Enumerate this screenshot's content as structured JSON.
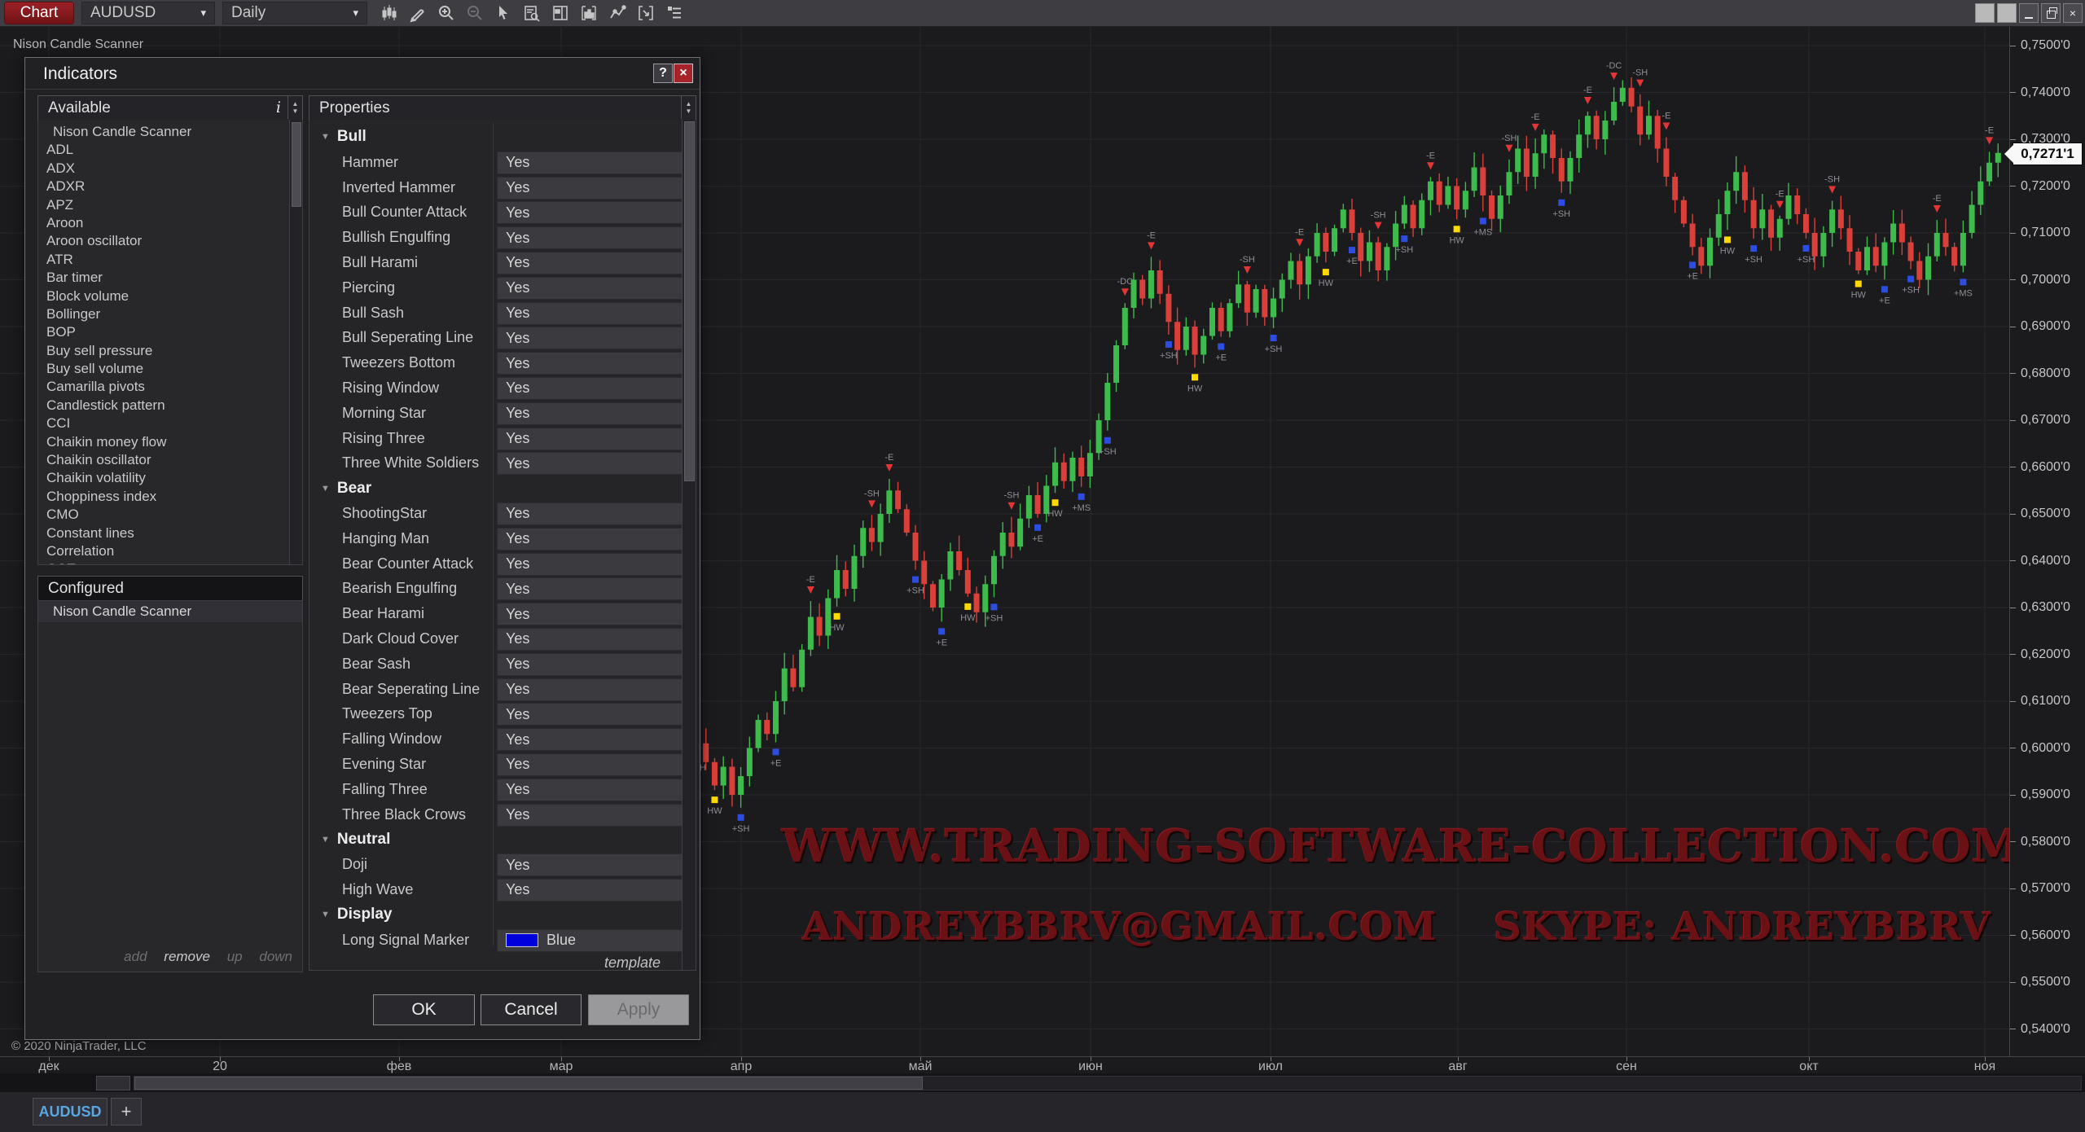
{
  "colors": {
    "candle_up": "#3dbb4d",
    "candle_down": "#da3f39",
    "grid": "#28282c",
    "marker_red": "#e23535",
    "marker_blue": "#2d4ce0",
    "marker_yellow": "#ffd900",
    "tab_blue": "#59a7e2",
    "accent_red": "#9b2026",
    "watermark": "#691115",
    "swatch_blue": "#0000dd"
  },
  "toolbar": {
    "menu_button": "Chart",
    "instrument": "AUDUSD",
    "period": "Daily",
    "chevron": "▾",
    "icons": [
      {
        "name": "chart-style"
      },
      {
        "name": "drawing-tools"
      },
      {
        "name": "zoom-in"
      },
      {
        "name": "zoom-out"
      },
      {
        "name": "cursor"
      },
      {
        "name": "data-box"
      },
      {
        "name": "chart-trader"
      },
      {
        "name": "indicators-panel"
      },
      {
        "name": "drawing-line"
      },
      {
        "name": "region-select"
      },
      {
        "name": "properties-list"
      }
    ]
  },
  "window_controls": {
    "close": "×"
  },
  "chart": {
    "label": "Nison Candle Scanner",
    "copyright": "© 2020 NinjaTrader, LLC",
    "watermark_line1": "WWW.TRADING-SOFTWARE-COLLECTION.COM",
    "watermark_line2": "ANDREYBBRV@GMAIL.COM    SKYPE: ANDREYBBRV",
    "price_tag": "0,7271'1",
    "y_axis": {
      "labels": [
        "0,7500'0",
        "0,7400'0",
        "0,7300'0",
        "0,7200'0",
        "0,7100'0",
        "0,7000'0",
        "0,6900'0",
        "0,6800'0",
        "0,6700'0",
        "0,6600'0",
        "0,6500'0",
        "0,6400'0",
        "0,6300'0",
        "0,6200'0",
        "0,6100'0",
        "0,6000'0",
        "0,5900'0",
        "0,5800'0",
        "0,5700'0",
        "0,5600'0",
        "0,5500'0",
        "0,5400'0"
      ],
      "top_price": 0.75,
      "step": 0.01
    },
    "x_axis": {
      "labels": [
        [
          "дек",
          60
        ],
        [
          "20",
          270
        ],
        [
          "фев",
          490
        ],
        [
          "мар",
          689
        ],
        [
          "апр",
          910
        ],
        [
          "май",
          1130
        ],
        [
          "июн",
          1339
        ],
        [
          "июл",
          1560
        ],
        [
          "авг",
          1790
        ],
        [
          "сен",
          1997
        ],
        [
          "окт",
          2221
        ],
        [
          "ноя",
          2437
        ]
      ]
    },
    "chart_data": {
      "type": "candlestick",
      "instrument": "AUDUSD",
      "period": "Daily",
      "ylim": [
        0.54,
        0.75
      ],
      "grid_step": 0.01,
      "last_price": 0.7271,
      "open_first": 0.604,
      "closes": [
        0.601,
        0.597,
        0.592,
        0.596,
        0.59,
        0.594,
        0.6,
        0.606,
        0.603,
        0.61,
        0.617,
        0.613,
        0.621,
        0.628,
        0.624,
        0.632,
        0.638,
        0.634,
        0.641,
        0.647,
        0.644,
        0.65,
        0.655,
        0.651,
        0.646,
        0.64,
        0.635,
        0.63,
        0.636,
        0.642,
        0.638,
        0.633,
        0.629,
        0.635,
        0.641,
        0.646,
        0.643,
        0.649,
        0.654,
        0.65,
        0.656,
        0.661,
        0.657,
        0.662,
        0.658,
        0.663,
        0.67,
        0.678,
        0.686,
        0.694,
        0.7,
        0.696,
        0.702,
        0.697,
        0.691,
        0.685,
        0.69,
        0.684,
        0.688,
        0.694,
        0.689,
        0.695,
        0.699,
        0.693,
        0.698,
        0.692,
        0.696,
        0.7,
        0.704,
        0.699,
        0.705,
        0.71,
        0.706,
        0.711,
        0.715,
        0.71,
        0.704,
        0.708,
        0.702,
        0.707,
        0.712,
        0.716,
        0.711,
        0.717,
        0.721,
        0.716,
        0.72,
        0.715,
        0.719,
        0.724,
        0.718,
        0.713,
        0.718,
        0.723,
        0.728,
        0.722,
        0.727,
        0.731,
        0.726,
        0.721,
        0.726,
        0.731,
        0.735,
        0.73,
        0.734,
        0.738,
        0.741,
        0.737,
        0.731,
        0.735,
        0.728,
        0.722,
        0.717,
        0.712,
        0.707,
        0.703,
        0.709,
        0.714,
        0.719,
        0.723,
        0.717,
        0.711,
        0.715,
        0.709,
        0.713,
        0.718,
        0.714,
        0.71,
        0.705,
        0.71,
        0.715,
        0.711,
        0.706,
        0.702,
        0.707,
        0.703,
        0.708,
        0.712,
        0.708,
        0.704,
        0.7,
        0.705,
        0.71,
        0.707,
        0.703,
        0.71,
        0.716,
        0.721,
        0.725,
        0.7271
      ],
      "markers": [
        [
          0,
          "b",
          "y",
          "+SH"
        ],
        [
          2,
          "b",
          "y",
          "HW"
        ],
        [
          5,
          "b",
          "b",
          "+SH"
        ],
        [
          9,
          "b",
          "b",
          "+E"
        ],
        [
          13,
          "a",
          "r",
          "-E"
        ],
        [
          16,
          "b",
          "y",
          "HW"
        ],
        [
          20,
          "a",
          "r",
          "-SH"
        ],
        [
          22,
          "a",
          "r",
          "-E"
        ],
        [
          25,
          "b",
          "b",
          "+SH"
        ],
        [
          28,
          "b",
          "b",
          "+E"
        ],
        [
          31,
          "b",
          "y",
          "HW"
        ],
        [
          34,
          "b",
          "b",
          "+SH"
        ],
        [
          36,
          "a",
          "r",
          "-SH"
        ],
        [
          39,
          "b",
          "b",
          "+E"
        ],
        [
          41,
          "b",
          "y",
          "HW"
        ],
        [
          44,
          "b",
          "b",
          "+MS"
        ],
        [
          47,
          "b",
          "b",
          "+SH"
        ],
        [
          49,
          "a",
          "r",
          "-DC"
        ],
        [
          52,
          "a",
          "r",
          "-E"
        ],
        [
          54,
          "b",
          "b",
          "+SH"
        ],
        [
          57,
          "b",
          "y",
          "HW"
        ],
        [
          60,
          "b",
          "b",
          "+E"
        ],
        [
          63,
          "a",
          "r",
          "-SH"
        ],
        [
          66,
          "b",
          "b",
          "+SH"
        ],
        [
          69,
          "a",
          "r",
          "-E"
        ],
        [
          72,
          "b",
          "y",
          "HW"
        ],
        [
          75,
          "b",
          "b",
          "+E"
        ],
        [
          78,
          "a",
          "r",
          "-SH"
        ],
        [
          81,
          "b",
          "b",
          "+SH"
        ],
        [
          84,
          "a",
          "r",
          "-E"
        ],
        [
          87,
          "b",
          "y",
          "HW"
        ],
        [
          90,
          "b",
          "b",
          "+MS"
        ],
        [
          93,
          "a",
          "r",
          "-SH"
        ],
        [
          96,
          "a",
          "r",
          "-E"
        ],
        [
          99,
          "b",
          "b",
          "+SH"
        ],
        [
          102,
          "a",
          "r",
          "-E"
        ],
        [
          105,
          "a",
          "r",
          "-DC"
        ],
        [
          108,
          "a",
          "r",
          "-SH"
        ],
        [
          111,
          "a",
          "r",
          "-E"
        ],
        [
          114,
          "b",
          "b",
          "+E"
        ],
        [
          118,
          "b",
          "y",
          "HW"
        ],
        [
          121,
          "b",
          "b",
          "+SH"
        ],
        [
          124,
          "a",
          "r",
          "-E"
        ],
        [
          127,
          "b",
          "b",
          "+SH"
        ],
        [
          130,
          "a",
          "r",
          "-SH"
        ],
        [
          133,
          "b",
          "y",
          "HW"
        ],
        [
          136,
          "b",
          "b",
          "+E"
        ],
        [
          139,
          "b",
          "b",
          "+SH"
        ],
        [
          142,
          "a",
          "r",
          "-E"
        ],
        [
          145,
          "b",
          "b",
          "+MS"
        ],
        [
          148,
          "a",
          "r",
          "-E"
        ]
      ]
    }
  },
  "dialog": {
    "title": "Indicators",
    "help_label": "?",
    "close_label": "×",
    "available": {
      "header": "Available",
      "info_icon": "i",
      "items": [
        "Nison Candle Scanner",
        "ADL",
        "ADX",
        "ADXR",
        "APZ",
        "Aroon",
        "Aroon oscillator",
        "ATR",
        "Bar timer",
        "Block volume",
        "Bollinger",
        "BOP",
        "Buy sell pressure",
        "Buy sell volume",
        "Camarilla pivots",
        "Candlestick pattern",
        "CCI",
        "Chaikin money flow",
        "Chaikin oscillator",
        "Chaikin volatility",
        "Choppiness index",
        "CMO",
        "Constant lines",
        "Correlation",
        "COT"
      ]
    },
    "configured": {
      "header": "Configured",
      "items": [
        "Nison Candle Scanner"
      ]
    },
    "footer_links": {
      "add": "add",
      "remove": "remove",
      "up": "up",
      "down": "down"
    },
    "properties": {
      "header": "Properties",
      "template_link": "template",
      "chevron": "▾",
      "triangle": "▼",
      "sections": [
        {
          "label": "Bull",
          "rows": [
            {
              "label": "Hammer",
              "value": "Yes"
            },
            {
              "label": "Inverted Hammer",
              "value": "Yes"
            },
            {
              "label": "Bull Counter Attack",
              "value": "Yes"
            },
            {
              "label": "Bullish Engulfing",
              "value": "Yes"
            },
            {
              "label": "Bull Harami",
              "value": "Yes"
            },
            {
              "label": "Piercing",
              "value": "Yes"
            },
            {
              "label": "Bull Sash",
              "value": "Yes"
            },
            {
              "label": "Bull Seperating Line",
              "value": "Yes"
            },
            {
              "label": "Tweezers Bottom",
              "value": "Yes"
            },
            {
              "label": "Rising Window",
              "value": "Yes"
            },
            {
              "label": "Morning Star",
              "value": "Yes"
            },
            {
              "label": "Rising Three",
              "value": "Yes"
            },
            {
              "label": "Three White Soldiers",
              "value": "Yes"
            }
          ]
        },
        {
          "label": "Bear",
          "rows": [
            {
              "label": "ShootingStar",
              "value": "Yes"
            },
            {
              "label": "Hanging Man",
              "value": "Yes"
            },
            {
              "label": "Bear Counter Attack",
              "value": "Yes"
            },
            {
              "label": "Bearish Engulfing",
              "value": "Yes"
            },
            {
              "label": "Bear Harami",
              "value": "Yes"
            },
            {
              "label": "Dark Cloud Cover",
              "value": "Yes"
            },
            {
              "label": "Bear Sash",
              "value": "Yes"
            },
            {
              "label": "Bear Seperating Line",
              "value": "Yes"
            },
            {
              "label": "Tweezers Top",
              "value": "Yes"
            },
            {
              "label": "Falling Window",
              "value": "Yes"
            },
            {
              "label": "Evening Star",
              "value": "Yes"
            },
            {
              "label": "Falling Three",
              "value": "Yes"
            },
            {
              "label": "Three Black Crows",
              "value": "Yes"
            }
          ]
        },
        {
          "label": "Neutral",
          "rows": [
            {
              "label": "Doji",
              "value": "Yes"
            },
            {
              "label": "High Wave",
              "value": "Yes"
            }
          ]
        },
        {
          "label": "Display",
          "rows": [
            {
              "label": "Long Signal Marker",
              "value": "Blue",
              "swatch": "#0000dd"
            }
          ]
        }
      ]
    },
    "buttons": {
      "ok": "OK",
      "cancel": "Cancel",
      "apply": "Apply"
    }
  },
  "tabbar": {
    "tab": "AUDUSD",
    "add": "+"
  }
}
